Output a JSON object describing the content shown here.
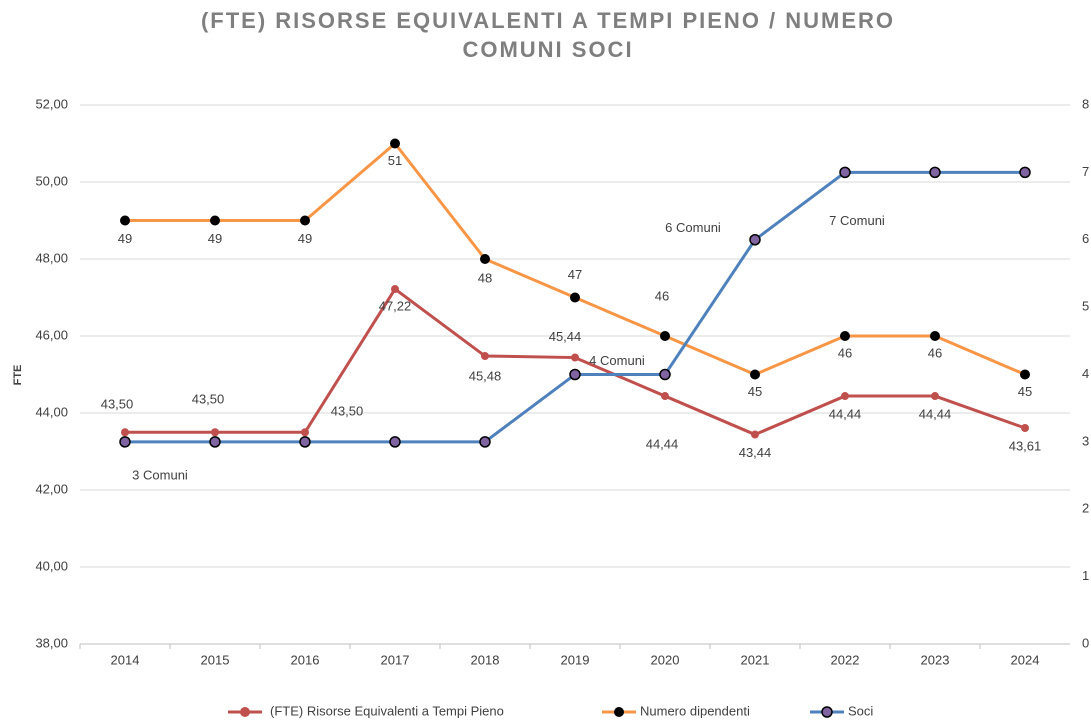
{
  "chart_data": {
    "type": "line",
    "title": [
      "(FTE) RISORSE EQUIVALENTI A TEMPI PIENO / NUMERO",
      "COMUNI SOCI"
    ],
    "y_label": "FTE",
    "categories": [
      "2014",
      "2015",
      "2016",
      "2017",
      "2018",
      "2019",
      "2020",
      "2021",
      "2022",
      "2023",
      "2024"
    ],
    "series": [
      {
        "name": "(FTE) Risorse Equivalenti a Tempi Pieno",
        "color": "#c0504d",
        "marker_color": "#c0504d",
        "values": [
          43.5,
          43.5,
          43.5,
          47.22,
          45.48,
          45.44,
          44.44,
          43.44,
          44.44,
          44.44,
          43.61
        ],
        "value_labels": [
          "43,50",
          "43,50",
          "43,50",
          "47,22",
          "45,48",
          "45,44",
          "44,44",
          "43,44",
          "44,44",
          "44,44",
          "43,61"
        ]
      },
      {
        "name": "Numero dipendenti",
        "color": "#f79646",
        "marker_color": "#000000",
        "values": [
          49,
          49,
          49,
          51,
          48,
          47,
          46,
          45,
          46,
          46,
          45
        ]
      },
      {
        "name": "Soci",
        "color": "#4f81bd",
        "marker_color": "#8064a2",
        "axis": "y2",
        "values": [
          3,
          3,
          3,
          3,
          3,
          4,
          4,
          6,
          7,
          7,
          7
        ],
        "value_labels": [
          "3 Comuni",
          null,
          null,
          null,
          null,
          "4 Comuni",
          null,
          "6 Comuni",
          "7 Comuni",
          null,
          null
        ]
      }
    ],
    "ylim": [
      38,
      52
    ],
    "yticks": [
      {
        "value": 38,
        "label": "38,00"
      },
      {
        "value": 40,
        "label": "40,00"
      },
      {
        "value": 42,
        "label": "42,00"
      },
      {
        "value": 44,
        "label": "44,00"
      },
      {
        "value": 46,
        "label": "46,00"
      },
      {
        "value": 48,
        "label": "48,00"
      },
      {
        "value": 50,
        "label": "50,00"
      },
      {
        "value": 52,
        "label": "52,00"
      }
    ],
    "y2lim": [
      0,
      8
    ],
    "y2ticks": [
      0,
      1,
      2,
      3,
      4,
      5,
      6,
      7,
      8
    ],
    "grid": true,
    "legend": "bottom"
  }
}
